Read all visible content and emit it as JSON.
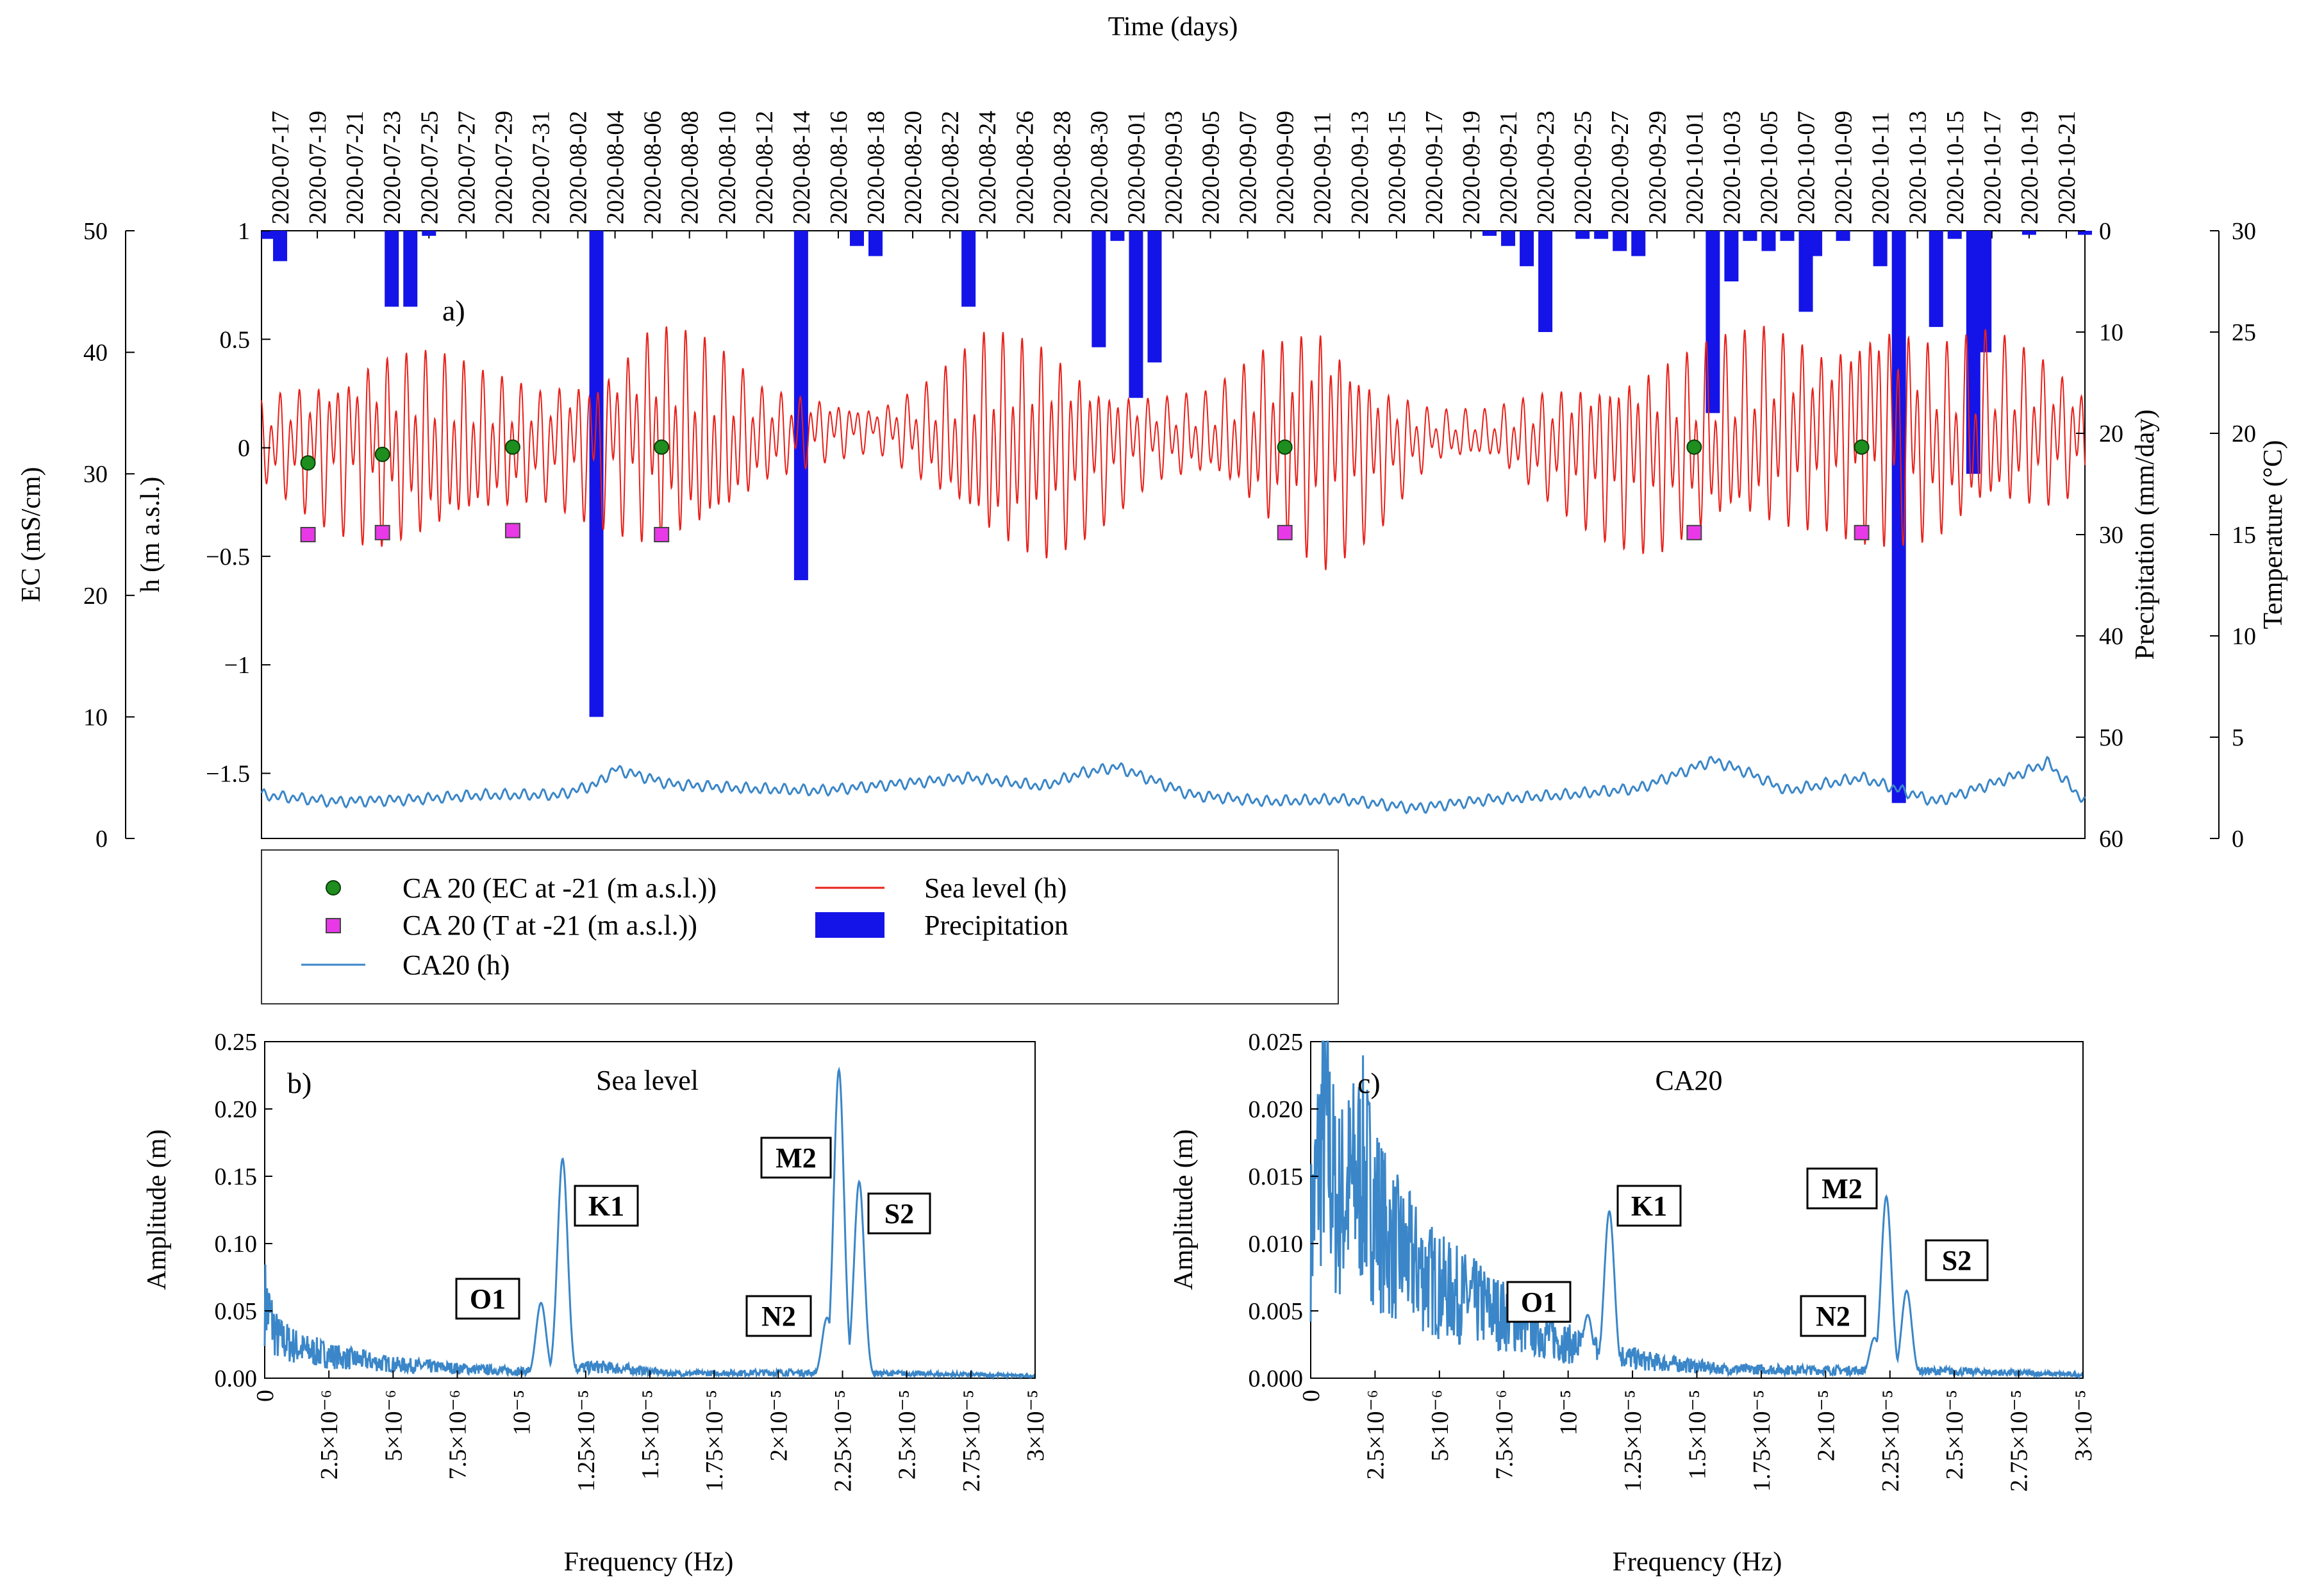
{
  "chart_data": [
    {
      "panel": "a)",
      "type": "line",
      "title": "Time (days)",
      "xlabel": "Time (days)",
      "x_range": [
        "2020-07-16",
        "2020-10-22"
      ],
      "x_ticks": [
        "2020-07-17",
        "2020-07-19",
        "2020-07-21",
        "2020-07-23",
        "2020-07-25",
        "2020-07-27",
        "2020-07-29",
        "2020-07-31",
        "2020-08-02",
        "2020-08-04",
        "2020-08-06",
        "2020-08-08",
        "2020-08-10",
        "2020-08-12",
        "2020-08-14",
        "2020-08-16",
        "2020-08-18",
        "2020-08-20",
        "2020-08-22",
        "2020-08-24",
        "2020-08-26",
        "2020-08-28",
        "2020-08-30",
        "2020-09-01",
        "2020-09-03",
        "2020-09-05",
        "2020-09-07",
        "2020-09-09",
        "2020-09-11",
        "2020-09-13",
        "2020-09-15",
        "2020-09-17",
        "2020-09-19",
        "2020-09-21",
        "2020-09-23",
        "2020-09-25",
        "2020-09-27",
        "2020-09-29",
        "2020-10-01",
        "2020-10-03",
        "2020-10-05",
        "2020-10-07",
        "2020-10-09",
        "2020-10-11",
        "2020-10-13",
        "2020-10-15",
        "2020-10-17",
        "2020-10-19",
        "2020-10-21"
      ],
      "axes": {
        "ec": {
          "label": "EC (mS/cm)",
          "range": [
            0,
            50
          ],
          "ticks": [
            "0",
            "10",
            "20",
            "30",
            "40",
            "50"
          ]
        },
        "h": {
          "label": "h (m a.s.l.)",
          "range": [
            -1.8,
            1.0
          ],
          "ticks": [
            "−1.5",
            "−1",
            "−0.5",
            "0",
            "0.5",
            "1"
          ]
        },
        "precip": {
          "label": "Precipitation (mm/day)",
          "range": [
            60,
            0
          ],
          "ticks": [
            "0",
            "10",
            "20",
            "30",
            "40",
            "50",
            "60"
          ]
        },
        "temp": {
          "label": "Temperature (°C)",
          "range": [
            0,
            30
          ],
          "ticks": [
            "0",
            "5",
            "10",
            "15",
            "20",
            "25",
            "30"
          ]
        }
      },
      "sea_level_envelope": {
        "days": [
          0,
          3,
          6,
          9,
          12,
          15,
          18,
          21,
          24,
          27,
          30,
          33,
          36,
          39,
          42,
          45,
          48,
          51,
          54,
          57,
          60,
          63,
          66,
          69,
          72,
          75,
          78,
          81,
          84,
          87,
          90,
          93,
          96,
          98
        ],
        "upper": [
          0.22,
          0.38,
          0.52,
          0.45,
          0.33,
          0.28,
          0.42,
          0.64,
          0.48,
          0.25,
          0.22,
          0.18,
          0.33,
          0.52,
          0.48,
          0.35,
          0.26,
          0.26,
          0.44,
          0.58,
          0.35,
          0.18,
          0.17,
          0.26,
          0.33,
          0.45,
          0.55,
          0.58,
          0.45,
          0.62,
          0.52,
          0.58,
          0.42,
          0.25
        ],
        "lower": [
          -0.18,
          -0.38,
          -0.52,
          -0.45,
          -0.33,
          -0.26,
          -0.4,
          -0.55,
          -0.45,
          -0.18,
          -0.1,
          -0.05,
          -0.25,
          -0.48,
          -0.52,
          -0.38,
          -0.2,
          -0.18,
          -0.38,
          -0.56,
          -0.4,
          -0.1,
          -0.08,
          -0.25,
          -0.4,
          -0.52,
          -0.5,
          -0.45,
          -0.38,
          -0.45,
          -0.5,
          -0.42,
          -0.32,
          -0.2
        ],
        "mean": [
          0.02,
          0.0,
          0.0,
          0.0,
          0.0,
          0.02,
          0.02,
          0.05,
          0.02,
          0.05,
          0.08,
          0.08,
          0.05,
          0.02,
          0.0,
          0.0,
          0.05,
          0.05,
          0.06,
          0.04,
          0.0,
          0.05,
          0.05,
          0.02,
          0.0,
          -0.02,
          0.02,
          0.05,
          0.05,
          0.08,
          0.02,
          0.05,
          0.05,
          0.05
        ]
      },
      "ca20_h": {
        "days": [
          0,
          4,
          8,
          12,
          16,
          18,
          19,
          22,
          26,
          30,
          34,
          38,
          42,
          44,
          46,
          50,
          54,
          58,
          62,
          66,
          70,
          74,
          78,
          80,
          82,
          86,
          90,
          94,
          96,
          98
        ],
        "values": [
          -1.6,
          -1.63,
          -1.62,
          -1.6,
          -1.6,
          -1.55,
          -1.48,
          -1.55,
          -1.57,
          -1.58,
          -1.55,
          -1.52,
          -1.56,
          -1.5,
          -1.47,
          -1.6,
          -1.63,
          -1.62,
          -1.66,
          -1.62,
          -1.6,
          -1.57,
          -1.44,
          -1.5,
          -1.58,
          -1.52,
          -1.63,
          -1.52,
          -1.45,
          -1.63
        ]
      },
      "ca20_ec_at_-21": {
        "days": [
          2.5,
          6.5,
          13.5,
          21.5,
          55,
          77,
          86
        ],
        "values": [
          30.9,
          31.6,
          32.2,
          32.2,
          32.2,
          32.2,
          32.2
        ]
      },
      "ca20_t_at_-21": {
        "days": [
          2.5,
          6.5,
          13.5,
          21.5,
          55,
          77,
          86
        ],
        "values": [
          15.0,
          15.1,
          15.2,
          15.0,
          15.1,
          15.1,
          15.1
        ]
      },
      "precipitation": {
        "days": [
          0,
          1,
          7,
          8,
          9,
          18,
          29,
          32,
          33,
          38,
          45,
          46,
          47,
          48,
          66,
          67,
          68,
          69,
          71,
          72,
          73,
          74,
          78,
          79,
          80,
          81,
          82,
          83,
          83.5,
          85,
          87,
          88,
          90,
          91,
          92,
          92.6,
          95,
          98
        ],
        "values": [
          0.8,
          3.0,
          7.5,
          7.5,
          0.5,
          48.0,
          34.5,
          1.5,
          2.5,
          7.5,
          11.5,
          1.0,
          16.5,
          13.0,
          0.5,
          1.5,
          3.5,
          10.0,
          0.8,
          0.8,
          2.0,
          2.5,
          18.0,
          5.0,
          1.0,
          2.0,
          1.0,
          8.0,
          2.5,
          1.0,
          3.5,
          56.5,
          9.5,
          0.8,
          24.0,
          12.0,
          0.4,
          0.4
        ]
      },
      "legend": {
        "ec": "CA 20 (EC at -21 (m a.s.l.))",
        "t": "CA 20 (T at -21 (m a.s.l.))",
        "ca20": "CA20 (h)",
        "sea": "Sea level (h)",
        "precip": "Precipitation"
      }
    },
    {
      "panel": "b)",
      "type": "line",
      "title": "Sea level",
      "xlabel": "Frequency (Hz)",
      "ylabel": "Amplitude (m)",
      "xlim": [
        0,
        3e-05
      ],
      "ylim": [
        0,
        0.25
      ],
      "x_ticks": [
        "0",
        "2.5×10⁻⁶",
        "5×10⁻⁶",
        "7.5×10⁻⁶",
        "10⁻⁵",
        "1.25×10⁻⁵",
        "1.5×10⁻⁵",
        "1.75×10⁻⁵",
        "2×10⁻⁵",
        "2.25×10⁻⁵",
        "2.5×10⁻⁵",
        "2.75×10⁻⁵",
        "3×10⁻⁵"
      ],
      "y_ticks": [
        "0.00",
        "0.05",
        "0.10",
        "0.15",
        "0.20",
        "0.25"
      ],
      "peaks": [
        {
          "label": "O1",
          "freq": 1.076e-05,
          "amp": 0.056
        },
        {
          "label": "K1",
          "freq": 1.16e-05,
          "amp": 0.163
        },
        {
          "label": "N2",
          "freq": 2.19e-05,
          "amp": 0.045
        },
        {
          "label": "M2",
          "freq": 2.236e-05,
          "amp": 0.229
        },
        {
          "label": "S2",
          "freq": 2.315e-05,
          "amp": 0.146
        }
      ],
      "baseline": [
        [
          0,
          0.068
        ],
        [
          5e-07,
          0.035
        ],
        [
          1.5e-06,
          0.025
        ],
        [
          3e-06,
          0.018
        ],
        [
          5e-06,
          0.012
        ],
        [
          8e-06,
          0.008
        ],
        [
          1e-05,
          0.006
        ],
        [
          1.3e-05,
          0.01
        ],
        [
          1.6e-05,
          0.004
        ],
        [
          2e-05,
          0.005
        ],
        [
          2.5e-05,
          0.004
        ],
        [
          3e-05,
          0.002
        ]
      ],
      "labels": {
        "o1": "O1",
        "k1": "K1",
        "n2": "N2",
        "m2": "M2",
        "s2": "S2"
      }
    },
    {
      "panel": "c)",
      "type": "line",
      "title": "CA20",
      "xlabel": "Frequency (Hz)",
      "ylabel": "Amplitude (m)",
      "xlim": [
        0,
        3e-05
      ],
      "ylim": [
        0,
        0.025
      ],
      "x_ticks": [
        "0",
        "2.5×10⁻⁶",
        "5×10⁻⁶",
        "7.5×10⁻⁶",
        "10⁻⁵",
        "1.25×10⁻⁵",
        "1.5×10⁻⁵",
        "1.75×10⁻⁵",
        "2×10⁻⁵",
        "2.25×10⁻⁵",
        "2.5×10⁻⁵",
        "2.75×10⁻⁵",
        "3×10⁻⁵"
      ],
      "y_ticks": [
        "0.000",
        "0.005",
        "0.010",
        "0.015",
        "0.020",
        "0.025"
      ],
      "peaks": [
        {
          "label": "O1",
          "freq": 1.076e-05,
          "amp": 0.0047
        },
        {
          "label": "K1",
          "freq": 1.16e-05,
          "amp": 0.0124
        },
        {
          "label": "N2",
          "freq": 2.19e-05,
          "amp": 0.003
        },
        {
          "label": "M2",
          "freq": 2.236e-05,
          "amp": 0.0135
        },
        {
          "label": "S2",
          "freq": 2.315e-05,
          "amp": 0.0065
        }
      ],
      "baseline": [
        [
          0,
          0.012
        ],
        [
          5e-07,
          0.023
        ],
        [
          1e-06,
          0.015
        ],
        [
          2e-06,
          0.018
        ],
        [
          3e-06,
          0.012
        ],
        [
          5e-06,
          0.008
        ],
        [
          8e-06,
          0.005
        ],
        [
          1e-05,
          0.003
        ],
        [
          1.3e-05,
          0.0015
        ],
        [
          1.6e-05,
          0.0008
        ],
        [
          2e-05,
          0.0007
        ],
        [
          2.5e-05,
          0.0006
        ],
        [
          3e-05,
          0.0003
        ]
      ],
      "labels": {
        "o1": "O1",
        "k1": "K1",
        "n2": "N2",
        "m2": "M2",
        "s2": "S2"
      }
    }
  ]
}
